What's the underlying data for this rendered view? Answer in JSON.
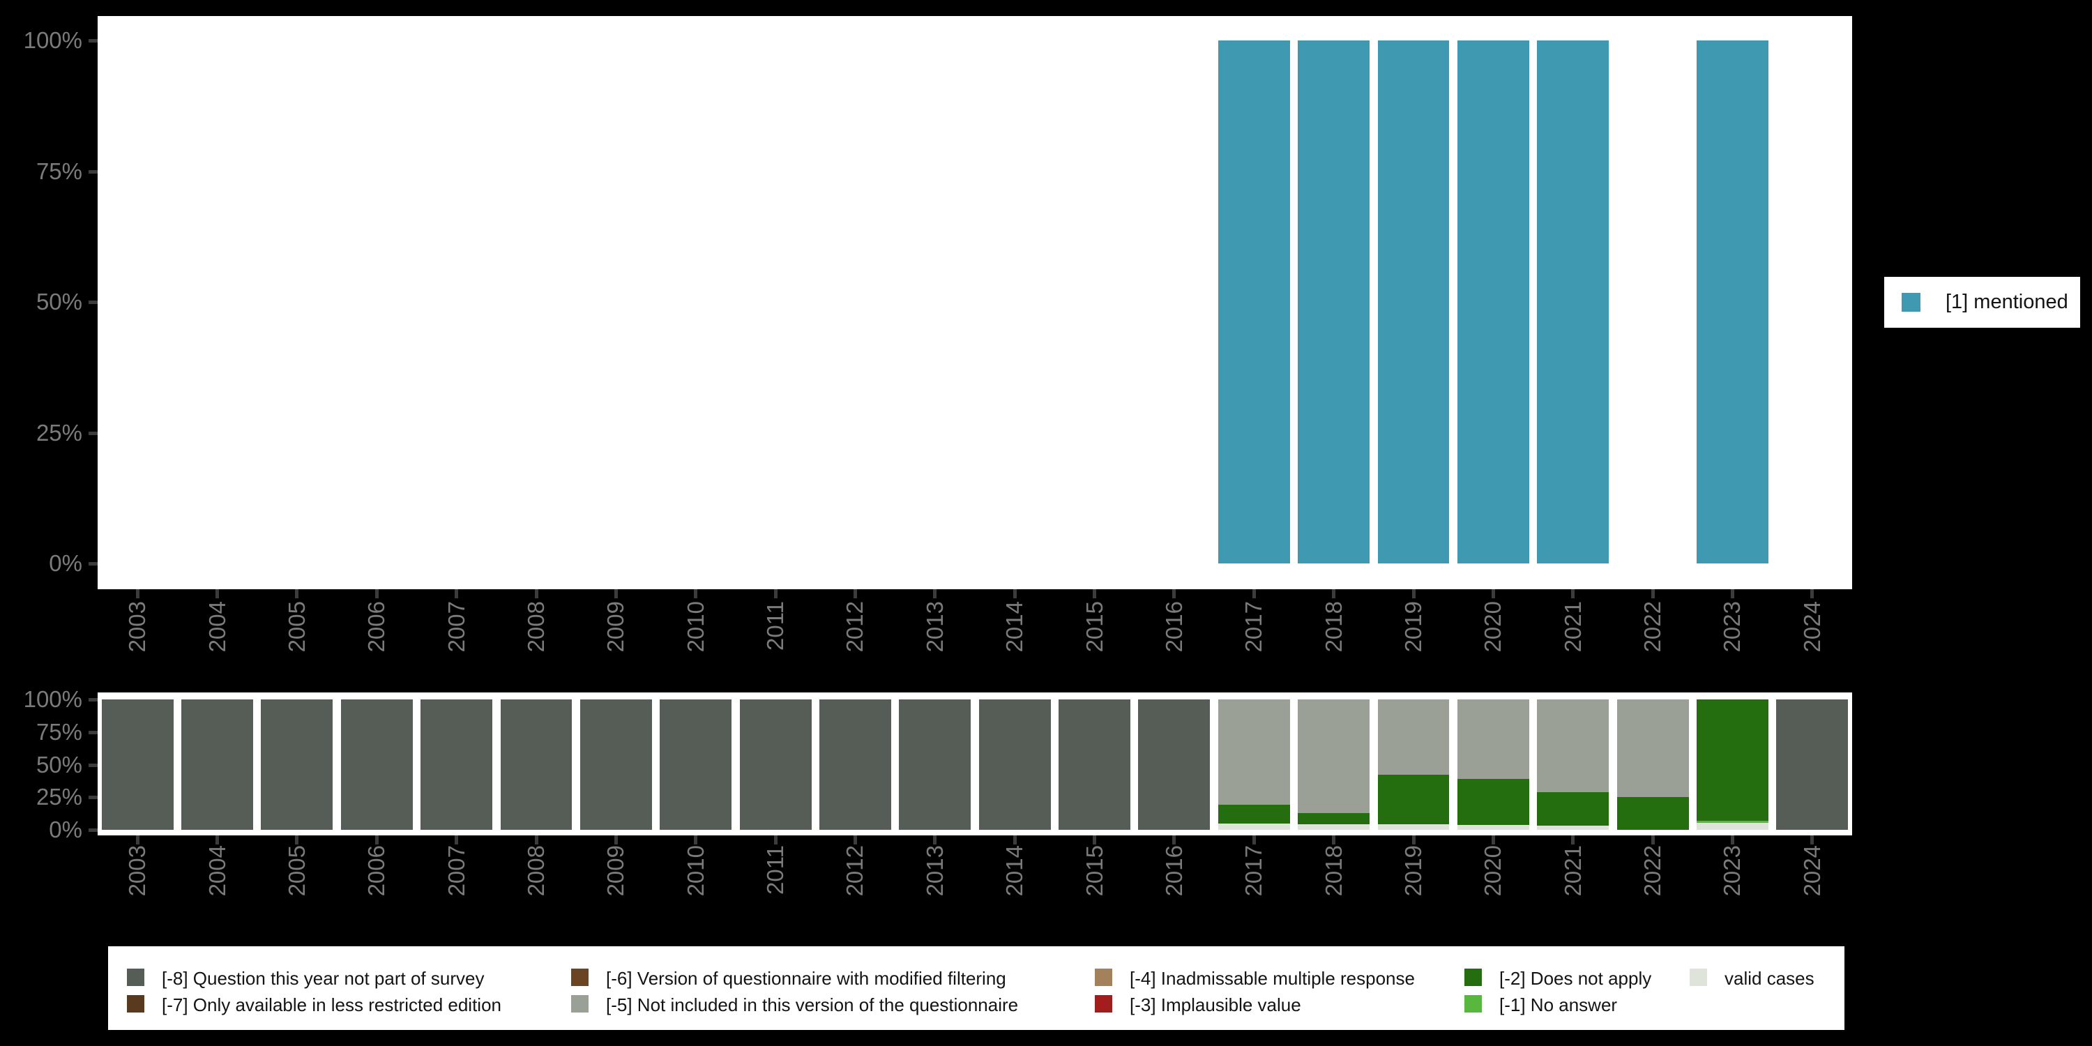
{
  "page": {
    "background_color": "#000000",
    "panel_color": "#ffffff",
    "axis_text_color": "#7b7b7b",
    "axis_tick_color": "#3c3c3c"
  },
  "chart_data": [
    {
      "type": "bar",
      "id": "mentioned-by-year",
      "title": "",
      "xlabel": "",
      "ylabel": "",
      "ylim": [
        0,
        100
      ],
      "grid": false,
      "y_tick_labels": [
        "100%",
        "75%",
        "50%",
        "25%",
        "0%"
      ],
      "y_tick_values": [
        100,
        75,
        50,
        25,
        0
      ],
      "categories": [
        "2003",
        "2004",
        "2005",
        "2006",
        "2007",
        "2008",
        "2009",
        "2010",
        "2011",
        "2012",
        "2013",
        "2014",
        "2015",
        "2016",
        "2017",
        "2018",
        "2019",
        "2020",
        "2021",
        "2022",
        "2023",
        "2024"
      ],
      "series": [
        {
          "name": "[1] mentioned",
          "color": "#3e99b1",
          "values": [
            0,
            0,
            0,
            0,
            0,
            0,
            0,
            0,
            0,
            0,
            0,
            0,
            0,
            0,
            100,
            100,
            100,
            100,
            100,
            0,
            100,
            0
          ]
        }
      ],
      "legend": {
        "position": "right",
        "items": [
          {
            "label": "[1] mentioned",
            "color": "#3e99b1"
          }
        ]
      }
    },
    {
      "type": "bar",
      "id": "missing-values-by-year",
      "title": "",
      "xlabel": "",
      "ylabel": "",
      "ylim": [
        0,
        100
      ],
      "grid": false,
      "stacked": true,
      "y_tick_labels": [
        "100%",
        "75%",
        "50%",
        "25%",
        "0%"
      ],
      "y_tick_values": [
        100,
        75,
        50,
        25,
        0
      ],
      "categories": [
        "2003",
        "2004",
        "2005",
        "2006",
        "2007",
        "2008",
        "2009",
        "2010",
        "2011",
        "2012",
        "2013",
        "2014",
        "2015",
        "2016",
        "2017",
        "2018",
        "2019",
        "2020",
        "2021",
        "2022",
        "2023",
        "2024"
      ],
      "series": [
        {
          "name": "valid cases",
          "color": "#dfe4da",
          "values": [
            0,
            0,
            0,
            0,
            0,
            0,
            0,
            0,
            0,
            0,
            0,
            0,
            0,
            0,
            5,
            4.5,
            4.5,
            4,
            3,
            0,
            5.5,
            0
          ]
        },
        {
          "name": "[-1] No answer",
          "color": "#58b83e",
          "values": [
            0,
            0,
            0,
            0,
            0,
            0,
            0,
            0,
            0,
            0,
            0,
            0,
            0,
            0,
            0,
            0,
            0,
            0,
            0,
            0,
            1.5,
            0
          ]
        },
        {
          "name": "[-2] Does not apply",
          "color": "#256e10",
          "values": [
            0,
            0,
            0,
            0,
            0,
            0,
            0,
            0,
            0,
            0,
            0,
            0,
            0,
            0,
            14,
            8.5,
            37.5,
            35,
            26,
            25,
            93,
            0
          ]
        },
        {
          "name": "[-5] Not included in this version of the questionnaire",
          "color": "#9aa096",
          "values": [
            0,
            0,
            0,
            0,
            0,
            0,
            0,
            0,
            0,
            0,
            0,
            0,
            0,
            0,
            81,
            87,
            58,
            61,
            71,
            75,
            0,
            0
          ]
        },
        {
          "name": "[-8] Question this year not part of survey",
          "color": "#565d56",
          "values": [
            100,
            100,
            100,
            100,
            100,
            100,
            100,
            100,
            100,
            100,
            100,
            100,
            100,
            100,
            0,
            0,
            0,
            0,
            0,
            0,
            0,
            100
          ]
        }
      ],
      "legend": {
        "position": "bottom",
        "items": [
          {
            "label": "[-8] Question this year not part of survey",
            "color": "#565d56",
            "col": 0,
            "row": 0
          },
          {
            "label": "[-7] Only available in less restricted edition",
            "color": "#5a3a1e",
            "col": 0,
            "row": 1
          },
          {
            "label": "[-6] Version of questionnaire with modified filtering",
            "color": "#6b4423",
            "col": 1,
            "row": 0
          },
          {
            "label": "[-5] Not included in this version of the questionnaire",
            "color": "#9aa096",
            "col": 1,
            "row": 1
          },
          {
            "label": "[-4] Inadmissable multiple response",
            "color": "#a3815a",
            "col": 2,
            "row": 0
          },
          {
            "label": "[-3] Implausible value",
            "color": "#a31d1d",
            "col": 2,
            "row": 1
          },
          {
            "label": "[-2] Does not apply",
            "color": "#256e10",
            "col": 3,
            "row": 0
          },
          {
            "label": "[-1] No answer",
            "color": "#58b83e",
            "col": 3,
            "row": 1
          },
          {
            "label": "valid cases",
            "color": "#dfe4da",
            "col": 4,
            "row": 0
          }
        ]
      }
    }
  ]
}
